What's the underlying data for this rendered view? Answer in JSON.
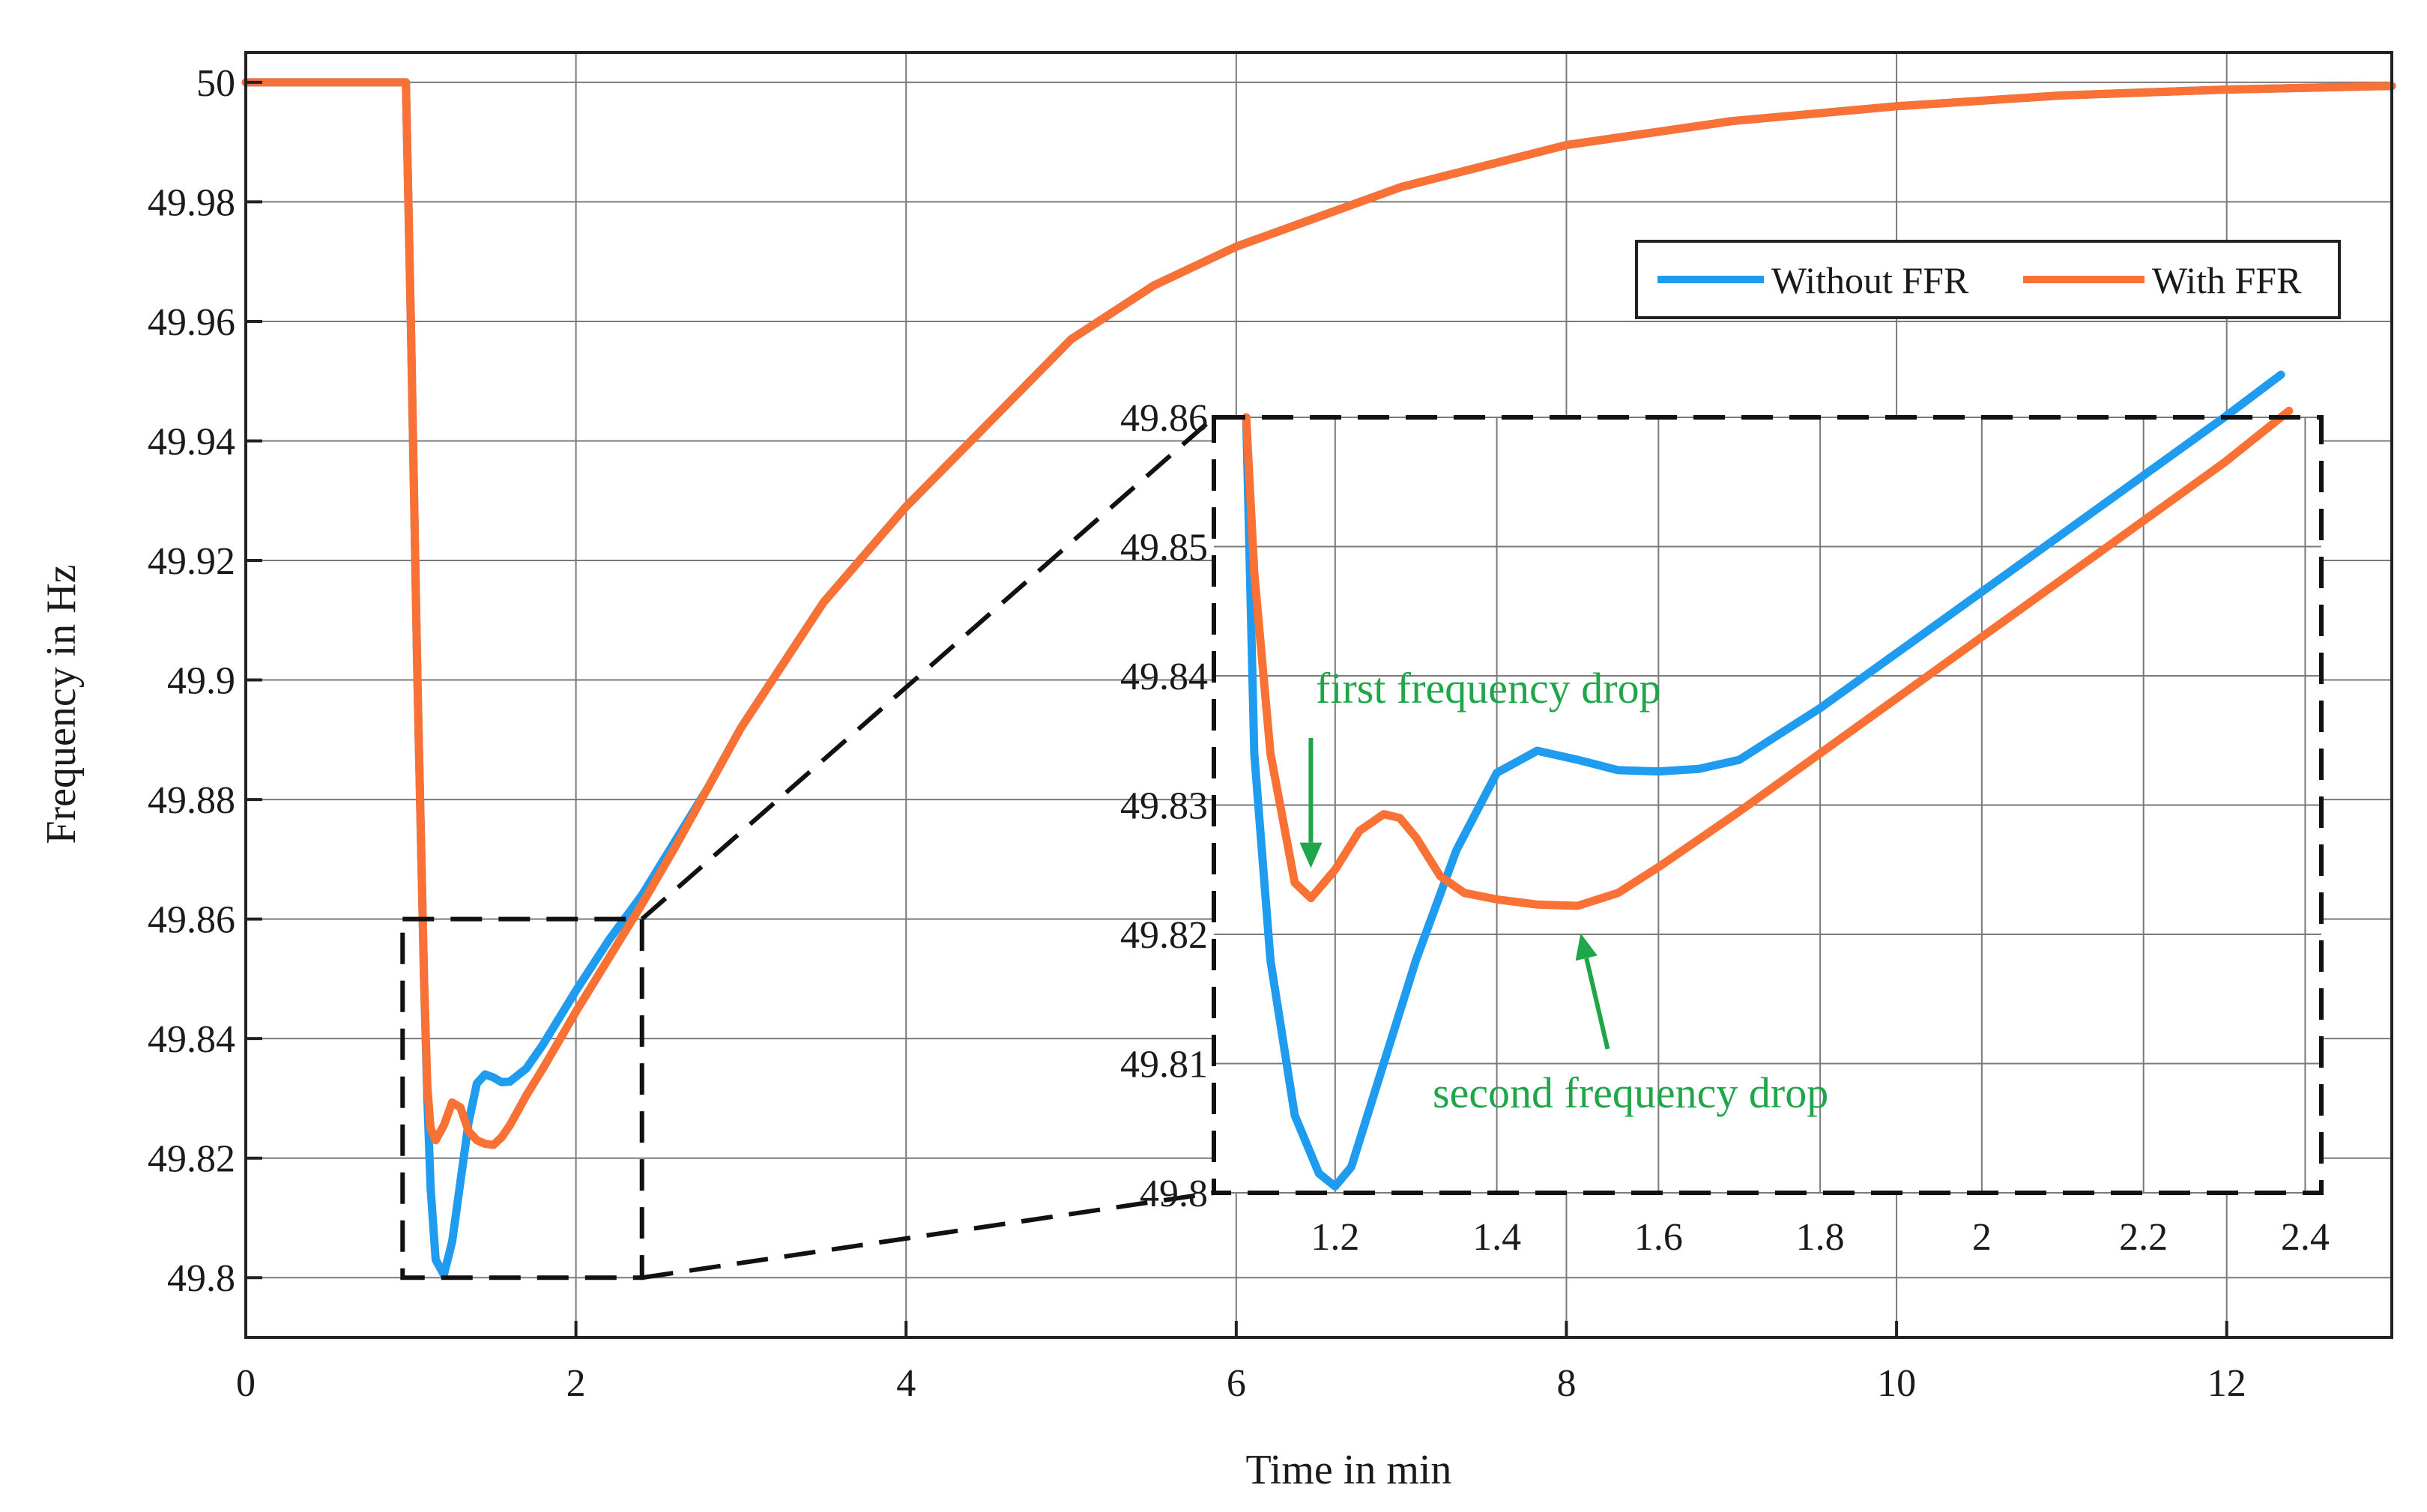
{
  "chart_data": [
    {
      "type": "line",
      "name": "main",
      "xlabel": "Time in min",
      "ylabel": "Frequency in Hz",
      "xlim": [
        0,
        13
      ],
      "ylim": [
        49.79,
        50.005
      ],
      "xticks": [
        0,
        2,
        4,
        6,
        8,
        10,
        12
      ],
      "xtick_labels": [
        "0",
        "2",
        "4",
        "6",
        "8",
        "10",
        "12"
      ],
      "yticks": [
        49.8,
        49.82,
        49.84,
        49.86,
        49.88,
        49.9,
        49.92,
        49.94,
        49.96,
        49.98,
        50
      ],
      "ytick_labels": [
        "49.8",
        "49.82",
        "49.84",
        "49.86",
        "49.88",
        "49.9",
        "49.92",
        "49.94",
        "49.96",
        "49.98",
        "50"
      ],
      "grid": true,
      "legend": {
        "position": "top-right",
        "entries": [
          "Without FFR",
          "With FFR"
        ]
      },
      "series": [
        {
          "name": "Without FFR",
          "color": "#1f9bef",
          "x": [
            0,
            0.97,
            1.0,
            1.04,
            1.08,
            1.1,
            1.12,
            1.15,
            1.2,
            1.25,
            1.3,
            1.35,
            1.4,
            1.45,
            1.5,
            1.55,
            1.6,
            1.7,
            1.8,
            2.0,
            2.2,
            2.4,
            2.6,
            2.8,
            3.0,
            3.5,
            4.0,
            4.5,
            5.0,
            5.5,
            6.0,
            7.0,
            8.0,
            9.0,
            10.0,
            11.0,
            12.0,
            13.0
          ],
          "y": [
            50.0,
            50.0,
            49.96,
            49.9,
            49.85,
            49.83,
            49.815,
            49.803,
            49.8005,
            49.806,
            49.816,
            49.826,
            49.8325,
            49.834,
            49.8335,
            49.8327,
            49.8328,
            49.835,
            49.839,
            49.848,
            49.8565,
            49.864,
            49.873,
            49.882,
            49.892,
            49.913,
            49.929,
            49.943,
            49.957,
            49.966,
            49.9725,
            49.9825,
            49.9895,
            49.9935,
            49.996,
            49.9978,
            49.9988,
            49.9994
          ]
        },
        {
          "name": "With FFR",
          "color": "#f97135",
          "x": [
            0,
            0.97,
            1.0,
            1.04,
            1.08,
            1.1,
            1.12,
            1.15,
            1.2,
            1.25,
            1.3,
            1.35,
            1.4,
            1.45,
            1.5,
            1.55,
            1.6,
            1.7,
            1.8,
            2.0,
            2.2,
            2.4,
            2.6,
            2.8,
            3.0,
            3.5,
            4.0,
            4.5,
            5.0,
            5.5,
            6.0,
            7.0,
            8.0,
            9.0,
            10.0,
            11.0,
            12.0,
            13.0
          ],
          "y": [
            50.0,
            50.0,
            49.96,
            49.9,
            49.85,
            49.832,
            49.825,
            49.823,
            49.8255,
            49.8293,
            49.8285,
            49.8245,
            49.823,
            49.8224,
            49.8222,
            49.8235,
            49.8255,
            49.8305,
            49.835,
            49.8445,
            49.8535,
            49.8625,
            49.872,
            49.882,
            49.892,
            49.913,
            49.929,
            49.943,
            49.957,
            49.966,
            49.9725,
            49.9825,
            49.9895,
            49.9935,
            49.996,
            49.9978,
            49.9988,
            49.9994
          ]
        }
      ],
      "zoom_box": {
        "x": [
          0.95,
          2.4
        ],
        "y": [
          49.8,
          49.86
        ]
      }
    },
    {
      "type": "line",
      "name": "inset",
      "xlim": [
        1.05,
        2.42
      ],
      "ylim": [
        49.8,
        49.86
      ],
      "xticks": [
        1.2,
        1.4,
        1.6,
        1.8,
        2,
        2.2,
        2.4
      ],
      "xtick_labels": [
        "1.2",
        "1.4",
        "1.6",
        "1.8",
        "2",
        "2.2",
        "2.4"
      ],
      "yticks": [
        49.8,
        49.81,
        49.82,
        49.83,
        49.84,
        49.85,
        49.86
      ],
      "ytick_labels": [
        "49.8",
        "49.81",
        "49.82",
        "49.83",
        "49.84",
        "49.85",
        "49.86"
      ],
      "grid": true,
      "series": [
        {
          "name": "Without FFR",
          "color": "#1f9bef",
          "x": [
            1.09,
            1.1,
            1.12,
            1.15,
            1.18,
            1.2,
            1.22,
            1.25,
            1.3,
            1.35,
            1.4,
            1.45,
            1.5,
            1.55,
            1.6,
            1.65,
            1.7,
            1.8,
            1.9,
            2.0,
            2.1,
            2.2,
            2.3,
            2.37
          ],
          "y": [
            49.86,
            49.834,
            49.818,
            49.806,
            49.8015,
            49.8005,
            49.802,
            49.808,
            49.818,
            49.8265,
            49.8325,
            49.8342,
            49.8335,
            49.8327,
            49.8326,
            49.8328,
            49.8335,
            49.8375,
            49.842,
            49.8465,
            49.851,
            49.8555,
            49.86,
            49.8633
          ]
        },
        {
          "name": "With FFR",
          "color": "#f97135",
          "x": [
            1.09,
            1.1,
            1.12,
            1.15,
            1.17,
            1.2,
            1.23,
            1.26,
            1.28,
            1.3,
            1.33,
            1.36,
            1.4,
            1.45,
            1.5,
            1.55,
            1.6,
            1.7,
            1.8,
            1.9,
            2.0,
            2.1,
            2.2,
            2.3,
            2.38
          ],
          "y": [
            49.86,
            49.848,
            49.834,
            49.824,
            49.8228,
            49.825,
            49.828,
            49.8293,
            49.829,
            49.8275,
            49.8245,
            49.8232,
            49.8227,
            49.8223,
            49.8222,
            49.8232,
            49.8252,
            49.8295,
            49.834,
            49.8385,
            49.843,
            49.8475,
            49.852,
            49.8565,
            49.8605
          ]
        }
      ],
      "annotations": [
        {
          "text": "first frequency drop",
          "target": [
            1.17,
            49.8235
          ]
        },
        {
          "text": "second frequency drop",
          "target": [
            1.5,
            49.8217
          ]
        }
      ]
    }
  ]
}
